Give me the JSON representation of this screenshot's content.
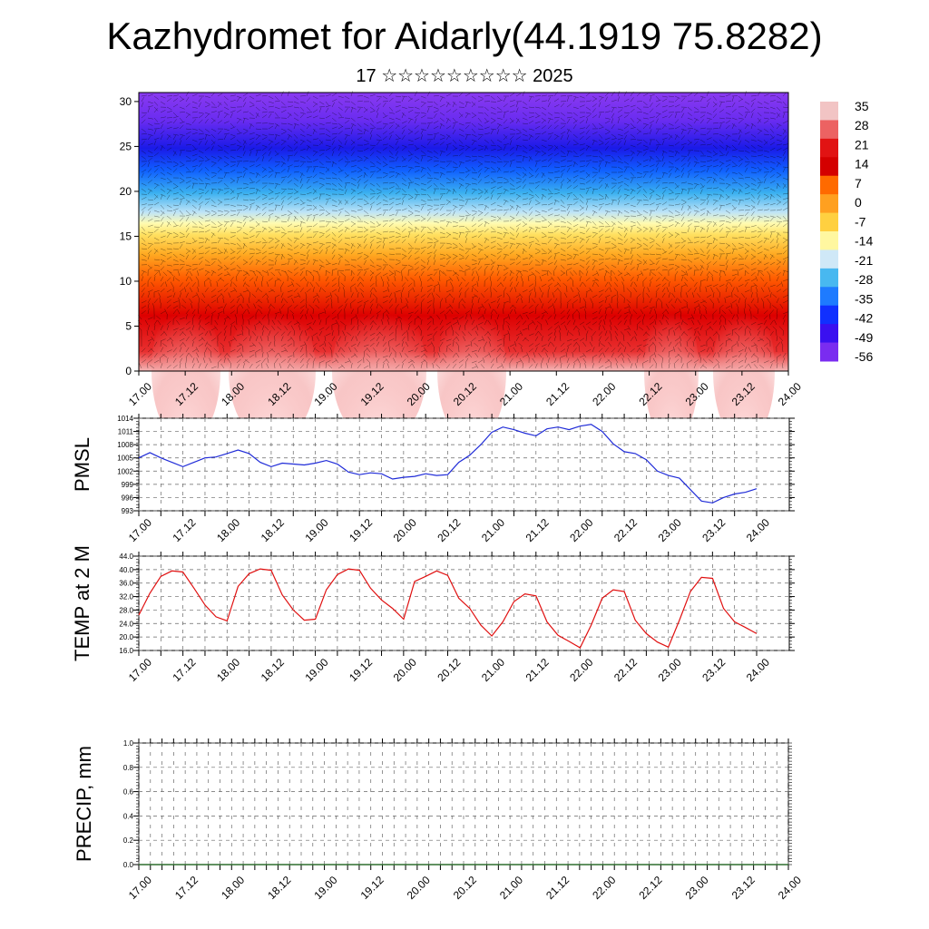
{
  "page": {
    "title": "Kazhydromet for Aidarly(44.1919 75.8282)",
    "subtitle": "17 ☆☆☆☆☆☆☆☆☆ 2025"
  },
  "colors": {
    "pmsl_line": "#1f2bd8",
    "temp_line": "#e01010",
    "precip_line": "#2f6e2f",
    "colorbar": [
      "#f2c4c4",
      "#ec6262",
      "#e11313",
      "#d40000",
      "#ff6a00",
      "#ffa020",
      "#ffd040",
      "#fff7a0",
      "#cfe8f7",
      "#48b8f0",
      "#1e7bff",
      "#1030ff",
      "#3a10f0",
      "#7a2cf0"
    ]
  },
  "chart_data": [
    {
      "type": "heatmap",
      "x_ticks": [
        "17.00",
        "17.12",
        "18.00",
        "18.12",
        "19.00",
        "19.12",
        "20.00",
        "20.12",
        "21.00",
        "21.12",
        "22.00",
        "22.12",
        "23.00",
        "23.12",
        "24.00"
      ],
      "y_ticks": [
        "0",
        "5",
        "10",
        "15",
        "20",
        "25",
        "30"
      ],
      "ylim": [
        0,
        31
      ],
      "colorbar_labels": [
        "35",
        "28",
        "21",
        "14",
        "7",
        "0",
        "-7",
        "-14",
        "-21",
        "-28",
        "-35",
        "-42",
        "-49",
        "-56"
      ]
    },
    {
      "type": "line",
      "ylabel": "PMSL",
      "ylim": [
        993,
        1014
      ],
      "y_ticks": [
        "993",
        "996",
        "999",
        "1002",
        "1005",
        "1008",
        "1011",
        "1014"
      ],
      "x_ticks": [
        "17.00",
        "17.12",
        "18.00",
        "18.12",
        "19.00",
        "19.12",
        "20.00",
        "20.12",
        "21.00",
        "21.12",
        "22.00",
        "22.12",
        "23.00",
        "23.12",
        "24.00"
      ],
      "x": [
        0,
        3,
        6,
        9,
        12,
        15,
        18,
        21,
        24,
        27,
        30,
        33,
        36,
        39,
        42,
        45,
        48,
        51,
        54,
        57,
        60,
        63,
        66,
        69,
        72,
        75,
        78,
        81,
        84,
        87,
        90,
        93,
        96,
        99,
        102,
        105,
        108,
        111,
        114,
        117,
        120,
        123,
        126,
        129,
        132,
        135,
        138,
        141,
        144,
        147,
        150,
        153,
        156,
        159,
        162,
        165,
        168
      ],
      "series": [
        {
          "values": [
            1005,
            1006.2,
            1005,
            1004,
            1003,
            1004,
            1005,
            1005.2,
            1006,
            1006.8,
            1006,
            1004,
            1003,
            1003.8,
            1003.6,
            1003.4,
            1003.8,
            1004.4,
            1003.6,
            1001.8,
            1001.2,
            1001.6,
            1001.4,
            1000.2,
            1000.6,
            1000.8,
            1001.4,
            1001,
            1001.2,
            1004,
            1005.6,
            1008,
            1010.8,
            1012,
            1011.4,
            1010.6,
            1010,
            1011.6,
            1012,
            1011.4,
            1012.2,
            1012.6,
            1011,
            1008.2,
            1006.4,
            1006,
            1004.6,
            1002,
            1001,
            1000.4,
            997.8,
            995.2,
            994.8,
            996,
            996.8,
            997.2,
            998
          ]
        }
      ]
    },
    {
      "type": "line",
      "ylabel": "TEMP at 2 M",
      "ylim": [
        16,
        44
      ],
      "y_ticks": [
        "16.0",
        "20.0",
        "24.0",
        "28.0",
        "32.0",
        "36.0",
        "40.0",
        "44.0"
      ],
      "x_ticks": [
        "17.00",
        "17.12",
        "18.00",
        "18.12",
        "19.00",
        "19.12",
        "20.00",
        "20.12",
        "21.00",
        "21.12",
        "22.00",
        "22.12",
        "23.00",
        "23.12",
        "24.00"
      ],
      "x": [
        0,
        3,
        6,
        9,
        12,
        15,
        18,
        21,
        24,
        27,
        30,
        33,
        36,
        39,
        42,
        45,
        48,
        51,
        54,
        57,
        60,
        63,
        66,
        69,
        72,
        75,
        78,
        81,
        84,
        87,
        90,
        93,
        96,
        99,
        102,
        105,
        108,
        111,
        114,
        117,
        120,
        123,
        126,
        129,
        132,
        135,
        138,
        141,
        144,
        147,
        150,
        153,
        156,
        159,
        162,
        165,
        168
      ],
      "series": [
        {
          "values": [
            26.5,
            33,
            38,
            39.6,
            39.3,
            34.5,
            29.5,
            26,
            24.8,
            35,
            38.8,
            40.2,
            39.8,
            32.5,
            28,
            25,
            25.3,
            34,
            38.5,
            40.2,
            39.8,
            34.5,
            31,
            28.5,
            25.3,
            36.5,
            38,
            39.6,
            38.3,
            31.5,
            28.5,
            23.5,
            20.3,
            24.5,
            30.5,
            32.8,
            32.2,
            24.5,
            20.5,
            18.7,
            16.8,
            23.5,
            31.5,
            34,
            33.5,
            25,
            21,
            18.5,
            17,
            25,
            33.5,
            37.7,
            37.4,
            28.5,
            24.5,
            22.8,
            21
          ]
        }
      ]
    },
    {
      "type": "line",
      "ylabel": "PRECIP, mm",
      "ylim": [
        0,
        1
      ],
      "y_ticks": [
        "0.0",
        "0.2",
        "0.4",
        "0.6",
        "0.8",
        "1.0"
      ],
      "x_ticks": [
        "17.00",
        "17.12",
        "18.00",
        "18.12",
        "19.00",
        "19.12",
        "20.00",
        "20.12",
        "21.00",
        "21.12",
        "22.00",
        "22.12",
        "23.00",
        "23.12",
        "24.00"
      ],
      "series": [
        {
          "values": [
            0,
            0,
            0,
            0,
            0,
            0,
            0,
            0,
            0,
            0,
            0,
            0,
            0,
            0,
            0
          ]
        }
      ]
    }
  ]
}
